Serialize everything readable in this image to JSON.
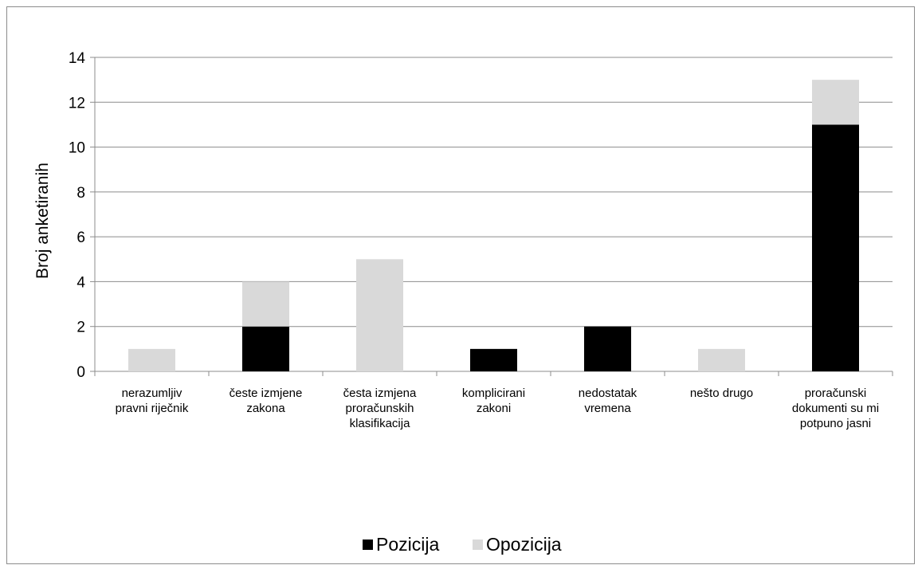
{
  "chart_data": {
    "type": "bar",
    "stacked": true,
    "categories": [
      "nerazumljiv pravni riječnik",
      "česte izmjene zakona",
      "česta izmjena proračunskih klasifikacija",
      "komplicirani zakoni",
      "nedostatak vremena",
      "nešto drugo",
      "proračunski dokumenti su mi potpuno jasni"
    ],
    "category_label_lines": [
      [
        "nerazumljiv",
        "pravni riječnik"
      ],
      [
        "česte izmjene",
        "zakona"
      ],
      [
        "česta izmjena",
        "proračunskih",
        "klasifikacija"
      ],
      [
        "komplicirani",
        "zakoni"
      ],
      [
        "nedostatak",
        "vremena"
      ],
      [
        "nešto drugo"
      ],
      [
        "proračunski",
        "dokumenti su mi",
        "potpuno jasni"
      ]
    ],
    "series": [
      {
        "name": "Pozicija",
        "values": [
          0,
          2,
          0,
          1,
          2,
          0,
          11
        ],
        "color": "#000000"
      },
      {
        "name": "Opozicija",
        "values": [
          1,
          2,
          5,
          0,
          0,
          1,
          2
        ],
        "color": "#d9d9d9"
      }
    ],
    "ylabel": "Broj anketiranih",
    "xlabel": "",
    "ylim": [
      0,
      14
    ],
    "yticks": [
      "0",
      "2",
      "4",
      "6",
      "8",
      "10",
      "12",
      "14"
    ],
    "grid": true,
    "legend_position": "bottom"
  }
}
